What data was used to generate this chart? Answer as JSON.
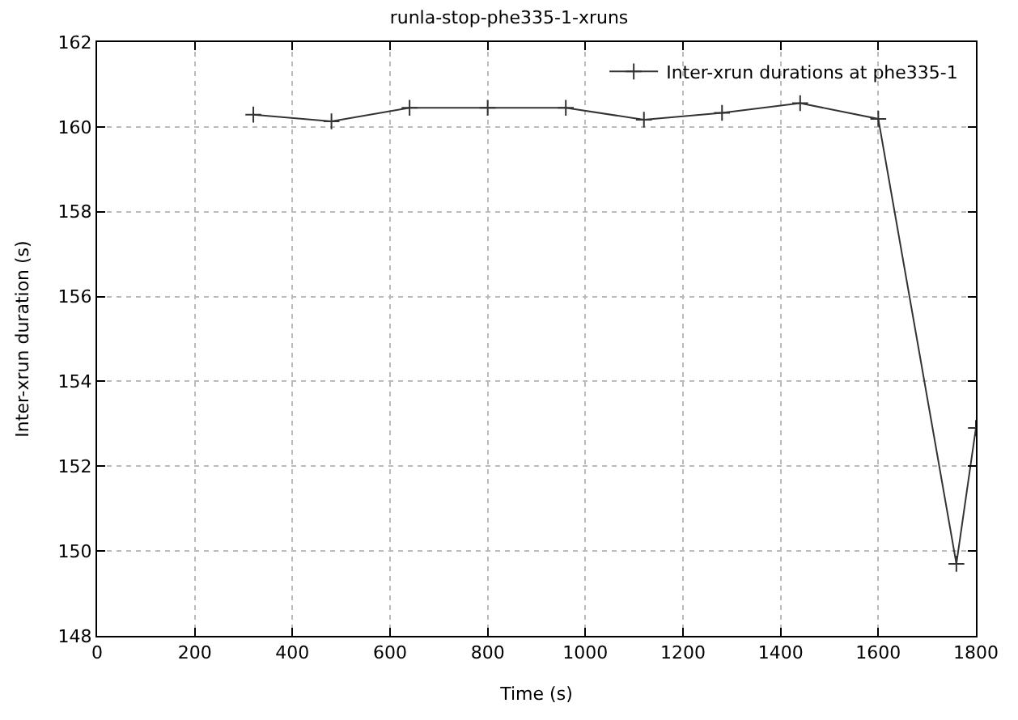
{
  "chart_data": {
    "type": "line",
    "title": "runla-stop-phe335-1-xruns",
    "xlabel": "Time (s)",
    "ylabel": "Inter-xrun duration (s)",
    "x": [
      320,
      480,
      640,
      800,
      960,
      1120,
      1280,
      1440,
      1600,
      1760,
      1800
    ],
    "series": [
      {
        "name": "Inter-xrun durations at phe335-1",
        "color": "#333333",
        "values": [
          160.29,
          160.13,
          160.45,
          160.45,
          160.45,
          160.17,
          160.33,
          160.56,
          160.19,
          149.7,
          152.9
        ]
      }
    ],
    "xlim": [
      0,
      1800
    ],
    "xticks": [
      0,
      200,
      400,
      600,
      800,
      1000,
      1200,
      1400,
      1600,
      1800
    ],
    "ylim": [
      148,
      162
    ],
    "yticks": [
      148,
      150,
      152,
      154,
      156,
      158,
      160,
      162
    ],
    "grid": true,
    "legend": "top right",
    "marker": "cross",
    "line_style": "solid"
  }
}
